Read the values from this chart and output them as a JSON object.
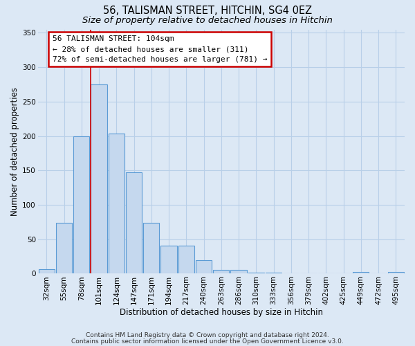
{
  "title": "56, TALISMAN STREET, HITCHIN, SG4 0EZ",
  "subtitle": "Size of property relative to detached houses in Hitchin",
  "xlabel": "Distribution of detached houses by size in Hitchin",
  "ylabel": "Number of detached properties",
  "bin_labels": [
    "32sqm",
    "55sqm",
    "78sqm",
    "101sqm",
    "124sqm",
    "147sqm",
    "171sqm",
    "194sqm",
    "217sqm",
    "240sqm",
    "263sqm",
    "286sqm",
    "310sqm",
    "333sqm",
    "356sqm",
    "379sqm",
    "402sqm",
    "425sqm",
    "449sqm",
    "472sqm",
    "495sqm"
  ],
  "bar_heights": [
    6,
    74,
    200,
    275,
    204,
    147,
    74,
    41,
    41,
    20,
    5,
    5,
    1,
    1,
    0,
    0,
    0,
    0,
    2,
    0,
    2
  ],
  "bar_color": "#c5d8ee",
  "bar_edge_color": "#5b9bd5",
  "ylim": [
    0,
    355
  ],
  "yticks": [
    0,
    50,
    100,
    150,
    200,
    250,
    300,
    350
  ],
  "property_line_x_label": "101sqm",
  "property_line_bin_index": 3,
  "annotation_title": "56 TALISMAN STREET: 104sqm",
  "annotation_line1": "← 28% of detached houses are smaller (311)",
  "annotation_line2": "72% of semi-detached houses are larger (781) →",
  "annotation_box_facecolor": "#ffffff",
  "annotation_box_edgecolor": "#cc0000",
  "footer_line1": "Contains HM Land Registry data © Crown copyright and database right 2024.",
  "footer_line2": "Contains public sector information licensed under the Open Government Licence v3.0.",
  "bg_color": "#dce8f5",
  "plot_bg_color": "#dce8f5",
  "grid_color": "#b8cfe8",
  "title_fontsize": 10.5,
  "subtitle_fontsize": 9.5,
  "xlabel_fontsize": 8.5,
  "ylabel_fontsize": 8.5,
  "tick_fontsize": 7.5,
  "annotation_fontsize": 8,
  "footer_fontsize": 6.5
}
